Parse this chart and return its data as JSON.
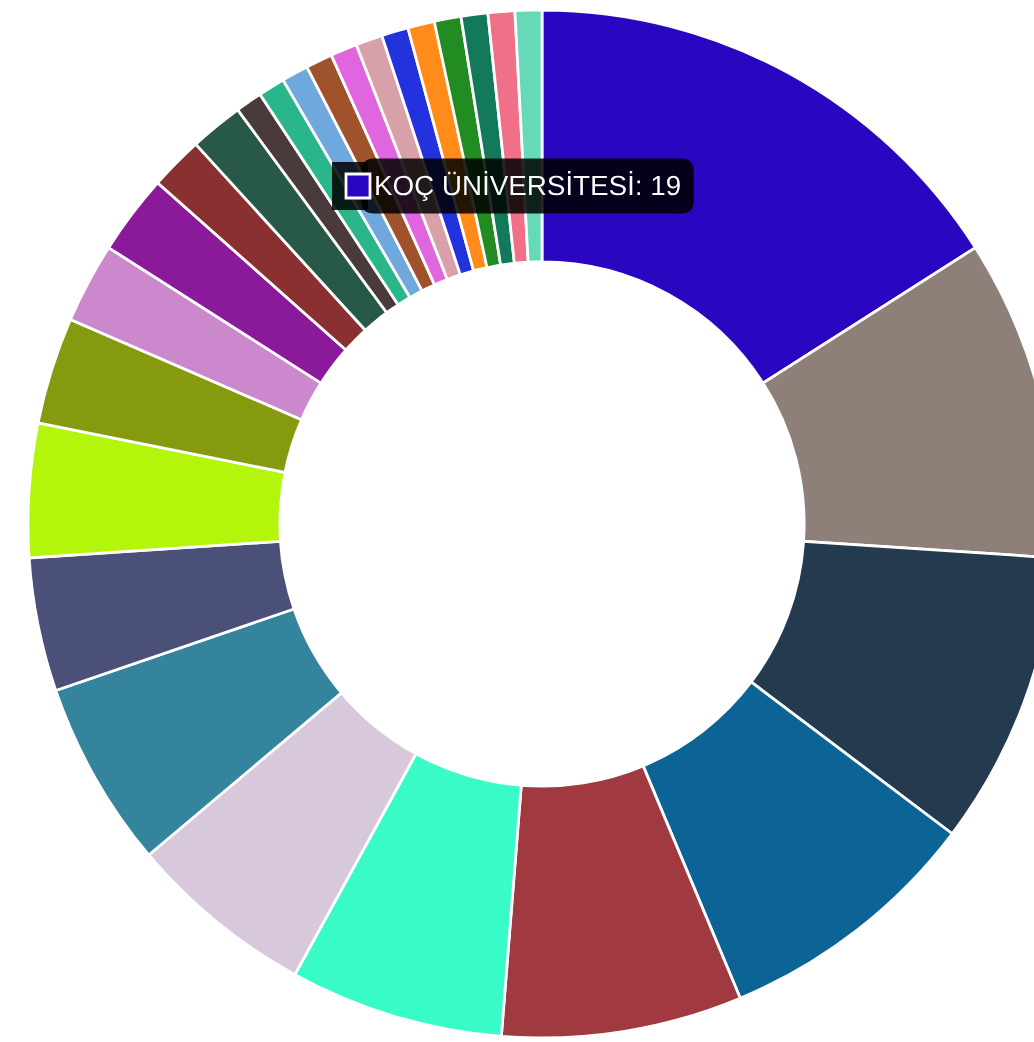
{
  "chart_data": {
    "type": "donut",
    "categories": [
      "KOÇ ÜNİVERSİTESİ",
      null,
      null,
      null,
      null,
      null,
      null,
      null,
      null,
      null,
      null,
      null,
      null,
      null,
      null,
      null,
      null,
      null,
      null,
      null,
      null,
      null,
      null,
      null,
      null,
      null,
      null
    ],
    "values": [
      19,
      12,
      11,
      10,
      9,
      8,
      7,
      7,
      5,
      5,
      4,
      3,
      3,
      2,
      2,
      1,
      1,
      1,
      1,
      1,
      1,
      1,
      1,
      1,
      1,
      1,
      1
    ],
    "colors": [
      "#2a06c0",
      "#8e8078",
      "#243a4e",
      "#0c6396",
      "#a03a40",
      "#38fbc8",
      "#d8c8dc",
      "#33849c",
      "#4a5078",
      "#b4f50c",
      "#869a10",
      "#cc88cc",
      "#8a1a9a",
      "#8a3030",
      "#285848",
      "#4a3a3a",
      "#2bb58a",
      "#6fa8dc",
      "#a0522d",
      "#e066e0",
      "#d8a0a8",
      "#2233dd",
      "#ff8c1a",
      "#228b22",
      "#127a5a",
      "#f07088",
      "#66d9b8"
    ],
    "value_labels": [
      "19",
      null,
      null,
      null,
      null,
      null,
      null,
      null,
      null,
      null,
      null,
      null,
      null,
      null,
      null,
      null,
      null,
      null,
      null,
      null,
      null,
      null,
      null,
      null,
      null,
      null,
      null
    ]
  }
}
